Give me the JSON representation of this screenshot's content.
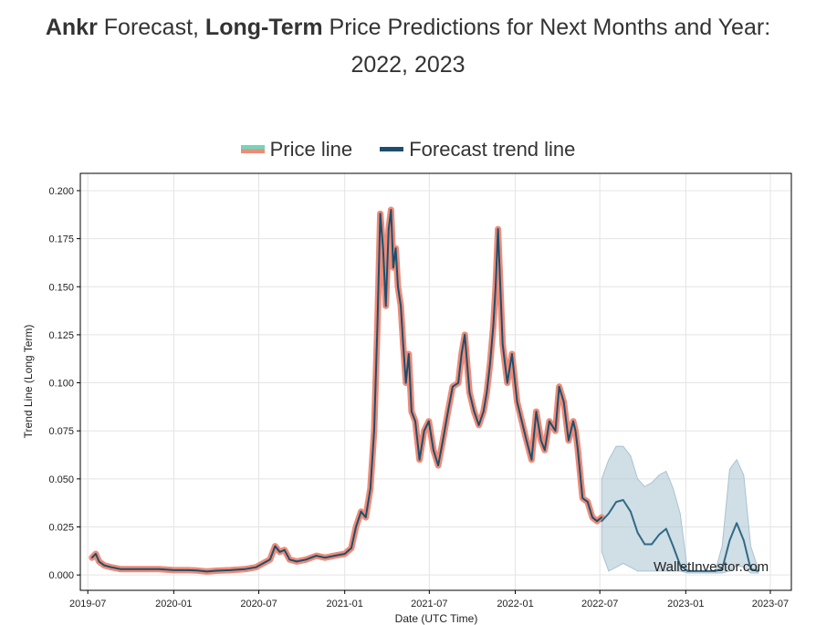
{
  "header": {
    "title_part1": "Ankr",
    "title_part2": " Forecast, ",
    "title_part3": "Long-Term",
    "title_part4": " Price Predictions for Next Months and Year:",
    "title_line2": "2022, 2023"
  },
  "legend": {
    "price_label": "Price line",
    "forecast_label": "Forecast trend line"
  },
  "colors": {
    "price_halo": "#ee8b78",
    "price_core": "#1c4f6d",
    "forecast": "#2f6a86",
    "band": "#a9c3d1",
    "grid": "#e4e4e4"
  },
  "watermark": "WalletInvestor.com",
  "chart_data": {
    "type": "line",
    "xlabel": "Date (UTC Time)",
    "ylabel": "Trend Line (Long Term)",
    "xlim": [
      "2019-06-15",
      "2023-08-15"
    ],
    "ylim": [
      -0.008,
      0.209
    ],
    "xticks": [
      "2019-07",
      "2020-01",
      "2020-07",
      "2021-01",
      "2021-07",
      "2022-01",
      "2022-07",
      "2023-01",
      "2023-07"
    ],
    "yticks": [
      "0.000",
      "0.025",
      "0.050",
      "0.075",
      "0.100",
      "0.125",
      "0.150",
      "0.175",
      "0.200"
    ],
    "grid": true,
    "legend_position": "top",
    "series": [
      {
        "name": "Price line",
        "x": [
          "2019-07-10",
          "2019-07-18",
          "2019-07-25",
          "2019-08-05",
          "2019-08-20",
          "2019-09-10",
          "2019-10-01",
          "2019-11-01",
          "2019-12-01",
          "2020-01-01",
          "2020-02-01",
          "2020-02-20",
          "2020-03-12",
          "2020-04-01",
          "2020-05-01",
          "2020-06-01",
          "2020-06-25",
          "2020-07-10",
          "2020-07-25",
          "2020-08-05",
          "2020-08-15",
          "2020-08-25",
          "2020-09-05",
          "2020-09-20",
          "2020-10-10",
          "2020-11-01",
          "2020-11-20",
          "2020-12-10",
          "2021-01-01",
          "2021-01-15",
          "2021-01-25",
          "2021-02-05",
          "2021-02-15",
          "2021-02-25",
          "2021-03-05",
          "2021-03-12",
          "2021-03-18",
          "2021-03-24",
          "2021-03-30",
          "2021-04-05",
          "2021-04-10",
          "2021-04-15",
          "2021-04-20",
          "2021-04-25",
          "2021-05-01",
          "2021-05-06",
          "2021-05-12",
          "2021-05-18",
          "2021-05-24",
          "2021-06-01",
          "2021-06-10",
          "2021-06-20",
          "2021-06-30",
          "2021-07-10",
          "2021-07-20",
          "2021-07-30",
          "2021-08-10",
          "2021-08-20",
          "2021-09-01",
          "2021-09-08",
          "2021-09-15",
          "2021-09-25",
          "2021-10-05",
          "2021-10-15",
          "2021-10-25",
          "2021-11-01",
          "2021-11-08",
          "2021-11-15",
          "2021-11-20",
          "2021-11-25",
          "2021-12-05",
          "2021-12-15",
          "2021-12-25",
          "2022-01-05",
          "2022-01-15",
          "2022-01-25",
          "2022-02-05",
          "2022-02-15",
          "2022-02-25",
          "2022-03-05",
          "2022-03-15",
          "2022-03-28",
          "2022-04-05",
          "2022-04-15",
          "2022-04-25",
          "2022-05-05",
          "2022-05-10",
          "2022-05-15",
          "2022-05-25",
          "2022-06-05",
          "2022-06-15",
          "2022-06-25",
          "2022-07-05"
        ],
        "values": [
          0.009,
          0.011,
          0.007,
          0.005,
          0.004,
          0.003,
          0.003,
          0.003,
          0.003,
          0.0025,
          0.0025,
          0.0023,
          0.0018,
          0.0022,
          0.0025,
          0.003,
          0.004,
          0.006,
          0.008,
          0.015,
          0.012,
          0.013,
          0.008,
          0.007,
          0.008,
          0.01,
          0.009,
          0.01,
          0.011,
          0.014,
          0.025,
          0.033,
          0.03,
          0.045,
          0.075,
          0.13,
          0.188,
          0.17,
          0.14,
          0.18,
          0.19,
          0.16,
          0.17,
          0.15,
          0.14,
          0.12,
          0.1,
          0.115,
          0.085,
          0.08,
          0.06,
          0.075,
          0.08,
          0.065,
          0.057,
          0.07,
          0.085,
          0.098,
          0.1,
          0.115,
          0.125,
          0.095,
          0.085,
          0.078,
          0.085,
          0.095,
          0.11,
          0.13,
          0.15,
          0.18,
          0.12,
          0.1,
          0.115,
          0.09,
          0.08,
          0.07,
          0.06,
          0.085,
          0.07,
          0.065,
          0.08,
          0.075,
          0.098,
          0.09,
          0.07,
          0.08,
          0.075,
          0.065,
          0.04,
          0.038,
          0.03,
          0.028,
          0.03
        ]
      },
      {
        "name": "Forecast trend line",
        "x": [
          "2022-07-05",
          "2022-07-20",
          "2022-08-05",
          "2022-08-20",
          "2022-09-05",
          "2022-09-20",
          "2022-10-05",
          "2022-10-20",
          "2022-11-05",
          "2022-11-20",
          "2022-12-05",
          "2022-12-20",
          "2023-01-05",
          "2023-01-20",
          "2023-02-05",
          "2023-02-20",
          "2023-03-05",
          "2023-03-20",
          "2023-04-05",
          "2023-04-20",
          "2023-05-05",
          "2023-05-20",
          "2023-06-05"
        ],
        "values": [
          0.028,
          0.032,
          0.038,
          0.039,
          0.033,
          0.022,
          0.016,
          0.016,
          0.021,
          0.024,
          0.015,
          0.005,
          0.002,
          0.002,
          0.002,
          0.002,
          0.002,
          0.003,
          0.018,
          0.027,
          0.018,
          0.003,
          0.002
        ],
        "lower": [
          0.012,
          0.002,
          0.004,
          0.006,
          0.004,
          0.002,
          0.002,
          0.002,
          0.002,
          0.002,
          0.002,
          0.002,
          0.001,
          0.001,
          0.001,
          0.001,
          0.001,
          0.001,
          0.002,
          0.005,
          0.004,
          0.001,
          0.001
        ],
        "upper": [
          0.05,
          0.06,
          0.067,
          0.067,
          0.062,
          0.05,
          0.046,
          0.048,
          0.052,
          0.054,
          0.045,
          0.032,
          0.002,
          0.002,
          0.002,
          0.002,
          0.002,
          0.015,
          0.055,
          0.06,
          0.052,
          0.015,
          0.003
        ]
      }
    ]
  }
}
